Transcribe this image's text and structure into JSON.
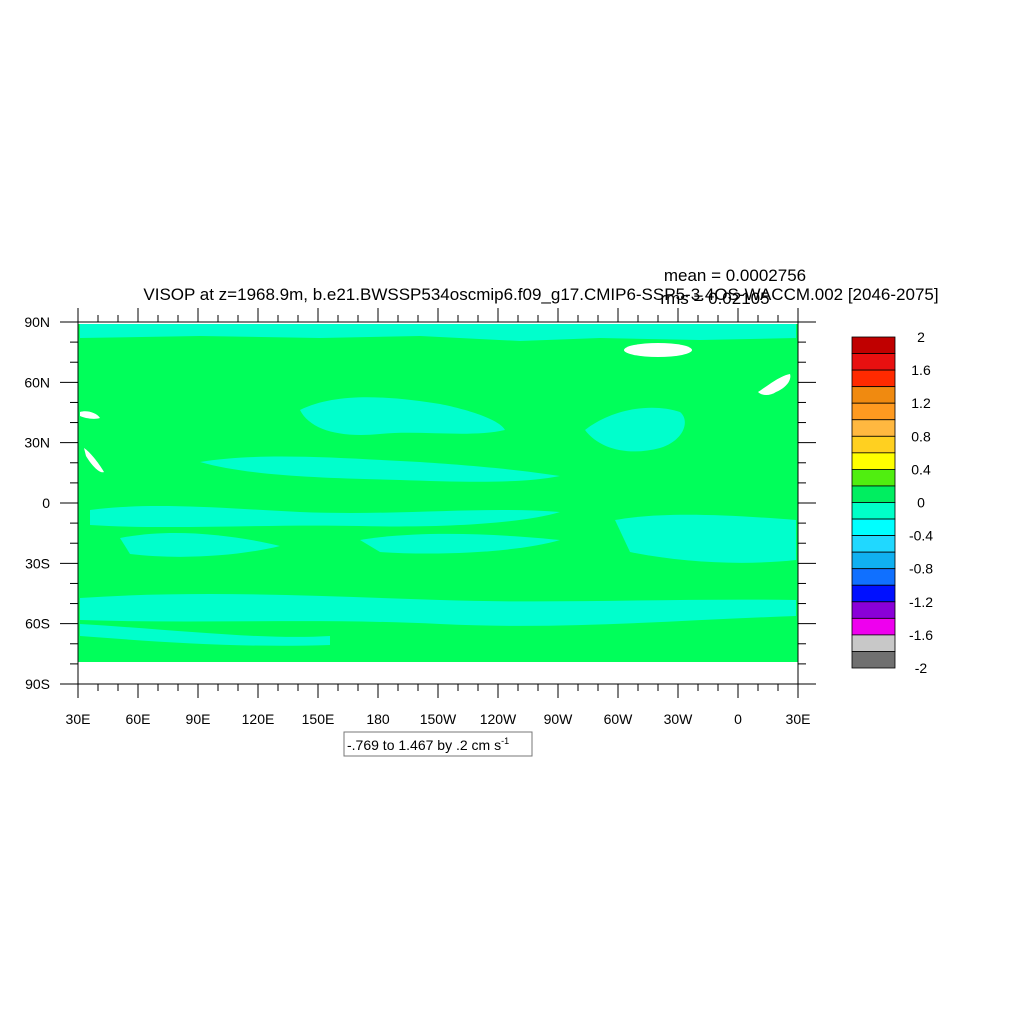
{
  "title": "VISOP at z=1968.9m, b.e21.BWSSP534oscmip6.f09_g17.CMIP6-SSP5-3.4OS-WACCM.002 [2046-2075]",
  "stats": {
    "mean": "mean = 0.0002756",
    "rms": "rms = 0.02105"
  },
  "contour_info": "-.769 to 1.467 by .2 cm s",
  "contour_info_exponent": "-1",
  "lat_labels": [
    "90N",
    "60N",
    "30N",
    "0",
    "30S",
    "60S",
    "90S"
  ],
  "lon_labels": [
    "30E",
    "60E",
    "90E",
    "120E",
    "150E",
    "180",
    "150W",
    "120W",
    "90W",
    "60W",
    "30W",
    "0",
    "30E"
  ],
  "colorbar": {
    "labels": [
      "2",
      "1.6",
      "1.2",
      "0.8",
      "0.4",
      "0",
      "-0.4",
      "-0.8",
      "-1.2",
      "-1.6",
      "-2"
    ],
    "colors_top_to_bottom": [
      "#c00000",
      "#e81010",
      "#ff2a00",
      "#f08a10",
      "#ff9a20",
      "#ffb840",
      "#ffd020",
      "#ffff00",
      "#50ee10",
      "#00ee60",
      "#00ffc8",
      "#00ffff",
      "#20d8ff",
      "#10b0f0",
      "#1070ff",
      "#0010ff",
      "#8a00d8",
      "#ee00ee",
      "#c8c8c8",
      "#707070"
    ]
  },
  "map_colors": {
    "background_field": "#00ff5a",
    "negative_band": "#00ffcc",
    "missing": "#ffffff"
  }
}
